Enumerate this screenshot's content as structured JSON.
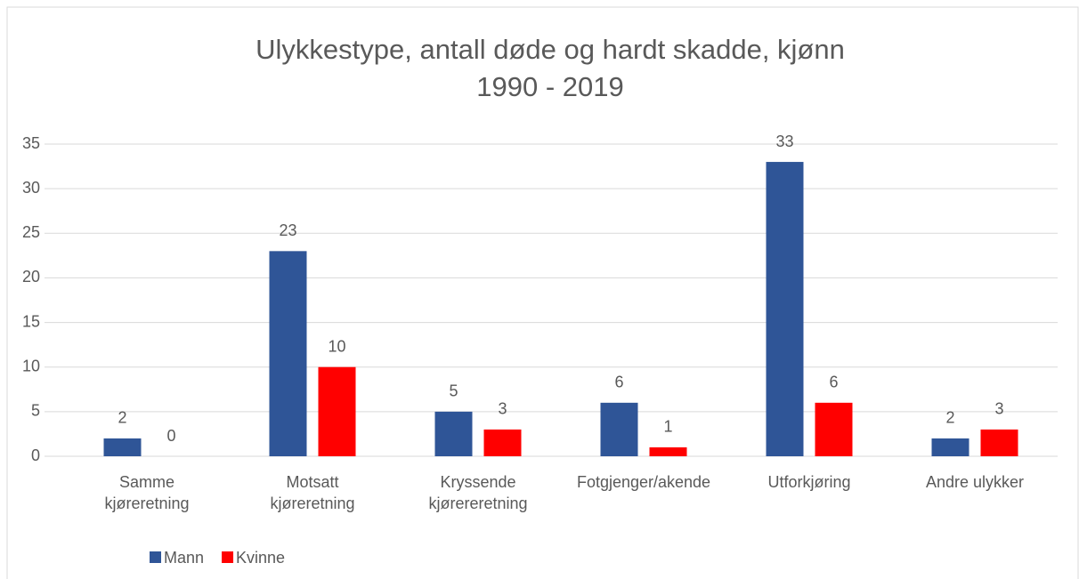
{
  "chart_data": {
    "type": "bar",
    "title": [
      "Ulykkestype, antall døde og hardt skadde, kjønn",
      "1990 - 2019"
    ],
    "categories": [
      "Samme kjøreretning",
      "Motsatt kjøreretning",
      "Kryssende kjørereretning",
      "Fotgjenger/akende",
      "Utforkjøring",
      "Andre ulykker"
    ],
    "series": [
      {
        "name": "Mann",
        "color": "#2f5597",
        "values": [
          2,
          23,
          5,
          6,
          33,
          2
        ]
      },
      {
        "name": "Kvinne",
        "color": "#ff0000",
        "values": [
          0,
          10,
          3,
          1,
          6,
          3
        ]
      }
    ],
    "ylim": [
      0,
      35
    ],
    "yticks": [
      0,
      5,
      10,
      15,
      20,
      25,
      30,
      35
    ],
    "grid": true,
    "legend": "bottom"
  }
}
